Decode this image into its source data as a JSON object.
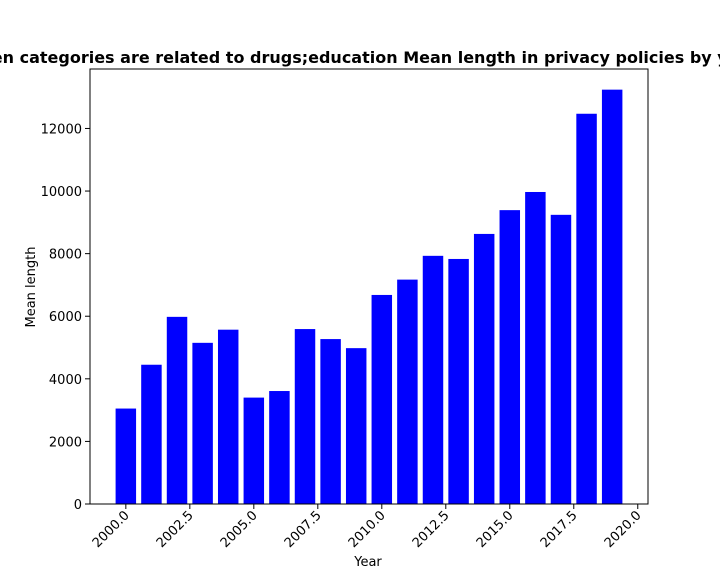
{
  "chart_data": {
    "type": "bar",
    "title": "When categories are related to drugs;education Mean length in privacy policies by year",
    "xlabel": "Year",
    "ylabel": "Mean length",
    "x": [
      2000,
      2001,
      2002,
      2003,
      2004,
      2005,
      2006,
      2007,
      2008,
      2009,
      2010,
      2011,
      2012,
      2013,
      2014,
      2015,
      2016,
      2017,
      2018,
      2019
    ],
    "values": [
      3050,
      4450,
      5980,
      5150,
      5570,
      3400,
      3610,
      5590,
      5270,
      4980,
      6680,
      7170,
      7930,
      7830,
      8630,
      9390,
      9970,
      9240,
      12470,
      13240
    ],
    "xlim": [
      1998.6,
      2020.4
    ],
    "ylim": [
      0,
      13900
    ],
    "xticks": [
      "2000.0",
      "2002.5",
      "2005.0",
      "2007.5",
      "2010.0",
      "2012.5",
      "2015.0",
      "2017.5",
      "2020.0"
    ],
    "yticks": [
      "0",
      "2000",
      "4000",
      "6000",
      "8000",
      "10000",
      "12000"
    ],
    "grid": false,
    "legend": "none",
    "bar_color": "#0000ff"
  }
}
